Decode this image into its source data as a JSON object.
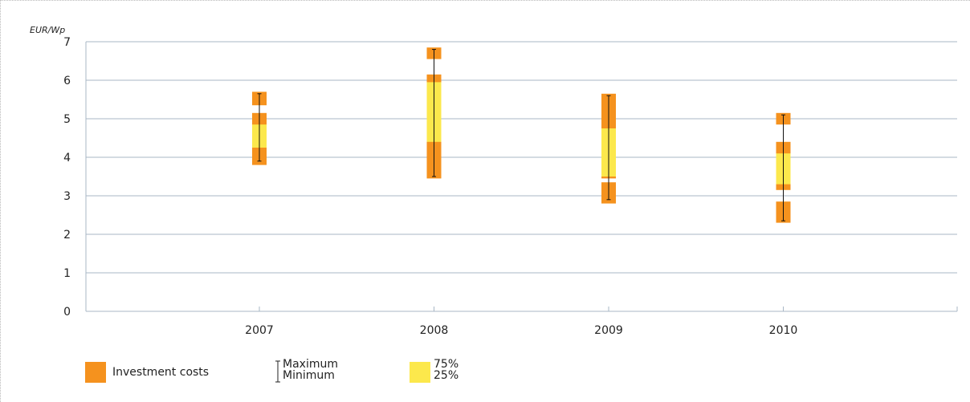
{
  "chart_data": {
    "type": "range_box",
    "ylabel": "EUR/Wp",
    "ylim": [
      0,
      7
    ],
    "yticks": [
      "0",
      "1",
      "2",
      "3",
      "4",
      "5",
      "6",
      "7"
    ],
    "grid": true,
    "categories": [
      "2007",
      "2008",
      "2009",
      "2010"
    ],
    "series": [
      {
        "name": "Investment costs",
        "color": "#f5921e",
        "segments": [
          [
            [
              5.35,
              5.7
            ],
            [
              3.8,
              5.15
            ]
          ],
          [
            [
              6.55,
              6.85
            ],
            [
              3.45,
              6.15
            ]
          ],
          [
            [
              2.8,
              3.35
            ],
            [
              3.45,
              5.65
            ]
          ],
          [
            [
              4.85,
              5.15
            ],
            [
              3.15,
              4.4
            ],
            [
              2.3,
              2.85
            ]
          ]
        ]
      },
      {
        "name": "75% / 25%",
        "color": "#fce84c",
        "segments": [
          [
            [
              4.25,
              4.85
            ]
          ],
          [
            [
              4.4,
              5.95
            ]
          ],
          [
            [
              3.5,
              4.75
            ]
          ],
          [
            [
              3.3,
              4.1
            ]
          ]
        ]
      }
    ],
    "minmax": [
      {
        "min": 3.9,
        "max": 5.65
      },
      {
        "min": 3.5,
        "max": 6.8
      },
      {
        "min": 2.9,
        "max": 5.6
      },
      {
        "min": 2.35,
        "max": 5.1
      }
    ]
  },
  "legend": {
    "investment_label": "Investment costs",
    "maximum_label": "Maximum",
    "minimum_label": "Minimum",
    "p75_label": "75%",
    "p25_label": "25%"
  }
}
